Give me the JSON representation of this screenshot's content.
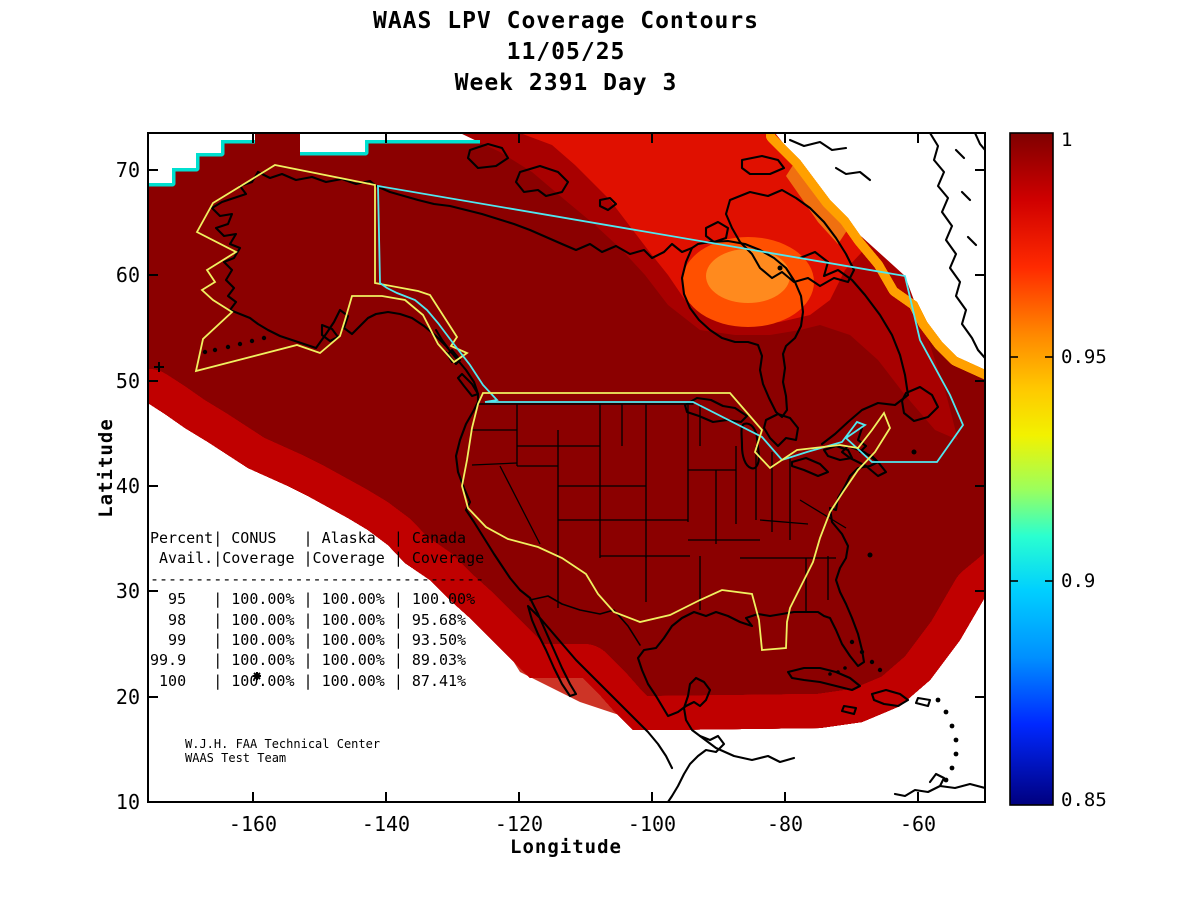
{
  "title": {
    "line1": "WAAS LPV Coverage Contours",
    "line2": "11/05/25",
    "line3": "Week 2391 Day 3"
  },
  "axes": {
    "xlabel": "Longitude",
    "ylabel": "Latitude",
    "x_ticks": [
      "-160",
      "-140",
      "-120",
      "-100",
      "-80",
      "-60"
    ],
    "y_ticks": [
      "10",
      "20",
      "30",
      "40",
      "50",
      "60",
      "70"
    ]
  },
  "colorbar": {
    "tick_labels": [
      "1",
      "0.95",
      "0.9",
      "0.85"
    ],
    "min": 0.85,
    "max": 1.0,
    "colormap": "jet"
  },
  "coverage_table": {
    "display_lines": [
      "Percent| CONUS   | Alaska  | Canada",
      " Avail.|Coverage |Coverage | Coverage",
      "-------------------------------------",
      "  95   | 100.00% | 100.00% | 100.00%",
      "  98   | 100.00% | 100.00% | 95.68%",
      "  99   | 100.00% | 100.00% | 93.50%",
      "99.9   | 100.00% | 100.00% | 89.03%",
      " 100   | 100.00% | 100.00% | 87.41%"
    ]
  },
  "credit": {
    "line1": "W.J.H. FAA Technical Center",
    "line2": "WAAS Test Team"
  },
  "colors": {
    "field_max": "#8B0000",
    "field_high": "#A80000",
    "field_bright": "#E01000",
    "anomaly_outer": "#FF5000",
    "anomaly_core": "#FF8A1E",
    "conus_alaska_boundary": "#F0F060",
    "canada_boundary": "#50E8F0",
    "coastline": "#000000"
  },
  "chart_data": {
    "type": "heatmap",
    "subtype": "filled-contour-map",
    "title": "WAAS LPV Coverage Contours",
    "date": "11/05/25",
    "gps_week": 2391,
    "gps_day": 3,
    "xlabel": "Longitude",
    "ylabel": "Latitude",
    "xlim": [
      -176,
      -50
    ],
    "ylim": [
      10,
      73.5
    ],
    "x_ticks": [
      -160,
      -140,
      -120,
      -100,
      -80,
      -60
    ],
    "y_ticks": [
      10,
      20,
      30,
      40,
      50,
      60,
      70
    ],
    "colorbar": {
      "min": 0.85,
      "max": 1.0,
      "ticks": [
        1,
        0.95,
        0.9,
        0.85
      ],
      "colormap": "jet"
    },
    "regions_outlined": [
      "CONUS",
      "Alaska",
      "Canada"
    ],
    "availability_table": {
      "columns": [
        "Percent Avail.",
        "CONUS Coverage",
        "Alaska Coverage",
        "Canada Coverage"
      ],
      "rows": [
        [
          "95",
          "100.00%",
          "100.00%",
          "100.00%"
        ],
        [
          "98",
          "100.00%",
          "100.00%",
          "95.68%"
        ],
        [
          "99",
          "100.00%",
          "100.00%",
          "93.50%"
        ],
        [
          "99.9",
          "100.00%",
          "100.00%",
          "89.03%"
        ],
        [
          "100",
          "100.00%",
          "100.00%",
          "87.41%"
        ]
      ]
    },
    "notes": "LPV availability contours over North America: interior of service area ~1.0 (dark red); reduced availability (~0.95-0.97, orange) centered near Foxe Basin / Hudson Bay north; rainbow fringe (1.0 down to 0.85) along Pacific, Gulf/Caribbean and Atlantic edges of coverage."
  }
}
